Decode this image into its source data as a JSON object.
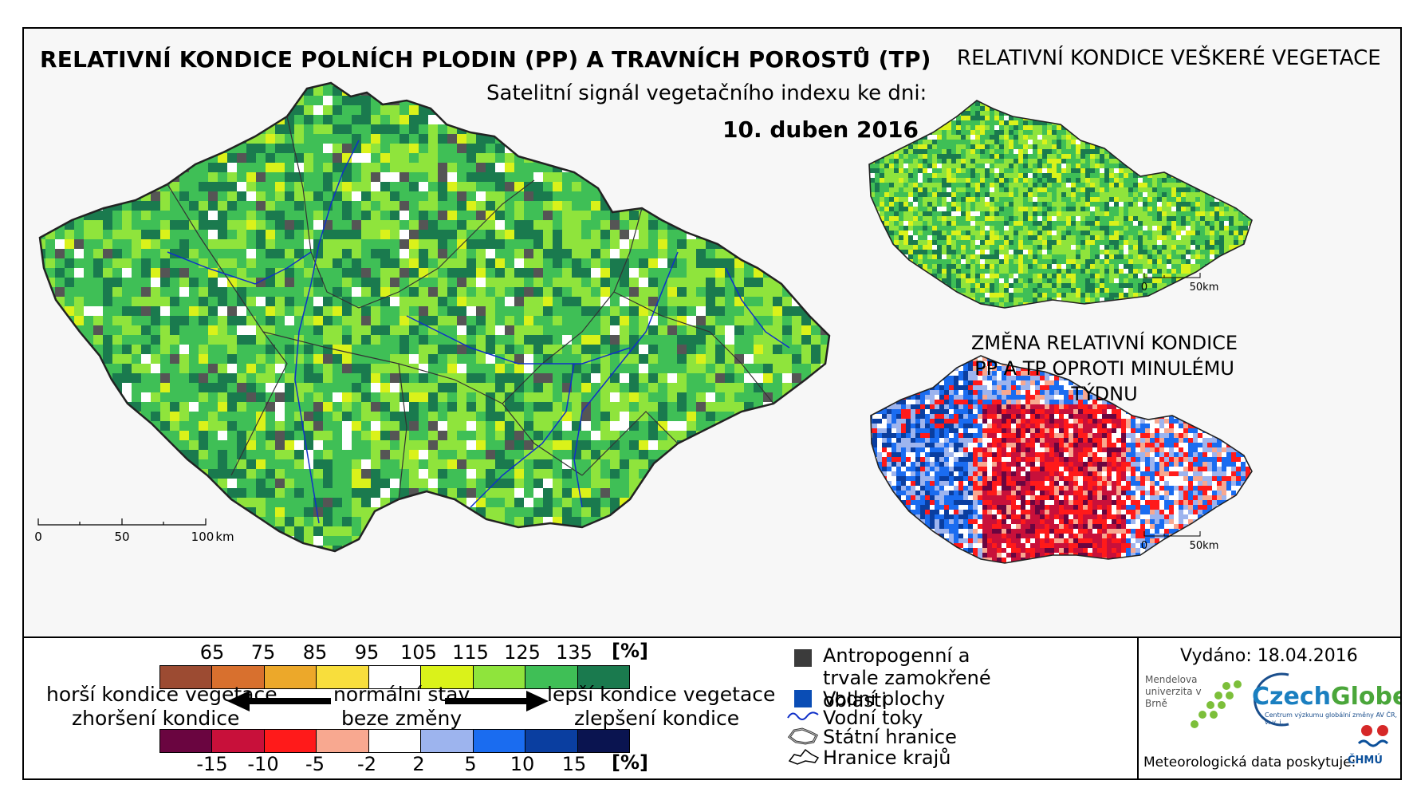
{
  "header": {
    "title_main": "RELATIVNÍ KONDICE POLNÍCH PLODIN (PP) A TRAVNÍCH POROSTŮ (TP)",
    "subtitle": "Satelitní signál vegetačního indexu ke dni:",
    "date": "10. duben 2016"
  },
  "insets": {
    "veg_title": "RELATIVNÍ KONDICE VEŠKERÉ VEGETACE",
    "change_title": "ZMĚNA RELATIVNÍ KONDICE PP A TP OPROTI MINULÉMU TÝDNU",
    "scale_labels": [
      "0",
      "50km"
    ]
  },
  "main_scale": {
    "labels": [
      "0",
      "50",
      "100",
      "km"
    ]
  },
  "legend": {
    "top_ticks": [
      "65",
      "75",
      "85",
      "95",
      "105",
      "115",
      "125",
      "135"
    ],
    "top_unit": "[%]",
    "top_colors": [
      "#9c4b32",
      "#d8702e",
      "#eca82a",
      "#f8de3c",
      "#ffffff",
      "#daf21a",
      "#8fe43c",
      "#3fbf56",
      "#1a7a4e"
    ],
    "bottom_ticks": [
      "-15",
      "-10",
      "-5",
      "-2",
      "2",
      "5",
      "10",
      "15"
    ],
    "bottom_unit": "[%]",
    "bottom_colors": [
      "#6a0540",
      "#c8103a",
      "#ff1a1a",
      "#f8a890",
      "#ffffff",
      "#9db4ee",
      "#1a6cf0",
      "#0a3ea0",
      "#0a1450"
    ],
    "left_top": "horší kondice vegetace",
    "left_bottom": "zhoršení kondice",
    "center_top": "normální stav",
    "center_bottom": "beze změny",
    "right_top": "lepší kondice vegetace",
    "right_bottom": "zlepšení kondice"
  },
  "map_legend": [
    {
      "icon": "urban-area-icon",
      "label": "Antropogenní a trvale zamokřené oblasti"
    },
    {
      "icon": "water-body-icon",
      "label": "Vodní plochy"
    },
    {
      "icon": "river-icon",
      "label": "Vodní toky"
    },
    {
      "icon": "state-border-icon",
      "label": "Státní hranice"
    },
    {
      "icon": "region-border-icon",
      "label": "Hranice krajů"
    }
  ],
  "footer": {
    "issued": "Vydáno: 18.04.2016",
    "logo_mendel": "Mendelova univerzita v Brně",
    "logo_czechglobe_a": "Czech",
    "logo_czechglobe_b": "Globe",
    "logo_czechglobe_sub": "Centrum výzkumu globální změny AV ČR, v. v. i.",
    "meteo": "Meteorologická data poskytuje:",
    "chmu": "ČHMÚ"
  }
}
